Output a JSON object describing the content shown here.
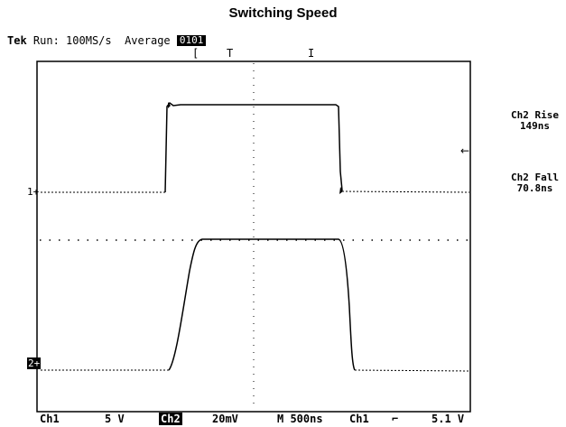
{
  "title": "Switching Speed",
  "status": {
    "brand": "Tek",
    "mode": "Run: 100MS/s",
    "acq": "Average",
    "badge": "0101"
  },
  "markers": [
    "[",
    "T",
    "I"
  ],
  "right_labels": {
    "rise_title": "Ch2 Rise",
    "rise_value": "149ns",
    "fall_title": "Ch2 Fall",
    "fall_value": "70.8ns",
    "arrow": "←"
  },
  "channel_markers": {
    "ch1": "1+",
    "ch2": "2+"
  },
  "footer": {
    "ch1_name": "Ch1",
    "ch1_scale": "5 V",
    "ch2_name": "Ch2",
    "ch2_scale": "20mV",
    "timebase": "M 500ns",
    "trig_src": "Ch1",
    "trig_slope": "⌐",
    "trig_level": "5.1 V"
  }
}
